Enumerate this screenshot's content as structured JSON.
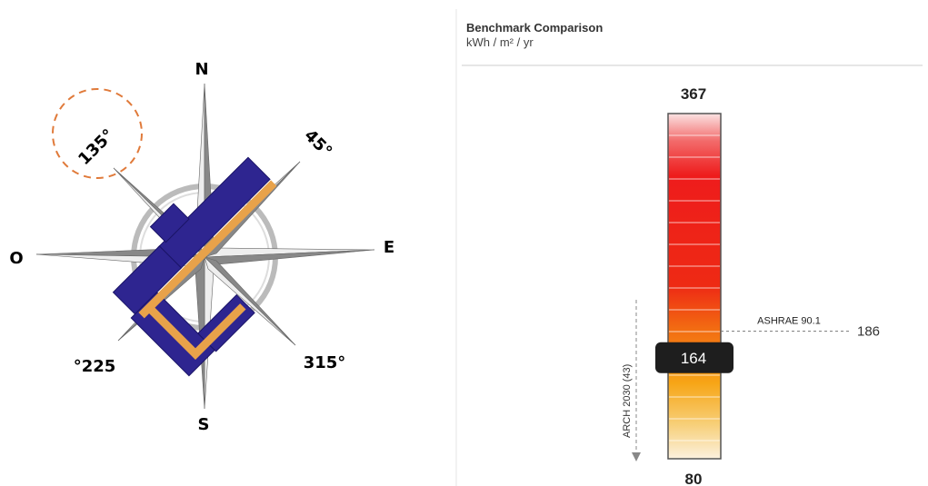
{
  "compass": {
    "north": "N",
    "east": "E",
    "south": "S",
    "west": "O",
    "angles": [
      "45°",
      "135°",
      "°225",
      "315°"
    ]
  },
  "benchmark": {
    "title": "Benchmark Comparison",
    "unit": "kWh / m² / yr",
    "max": 367,
    "min": 80,
    "value": 164,
    "reference": {
      "label": "ASHRAE 90.1",
      "value": 186
    },
    "target": "ARCH 2030 (43)"
  }
}
